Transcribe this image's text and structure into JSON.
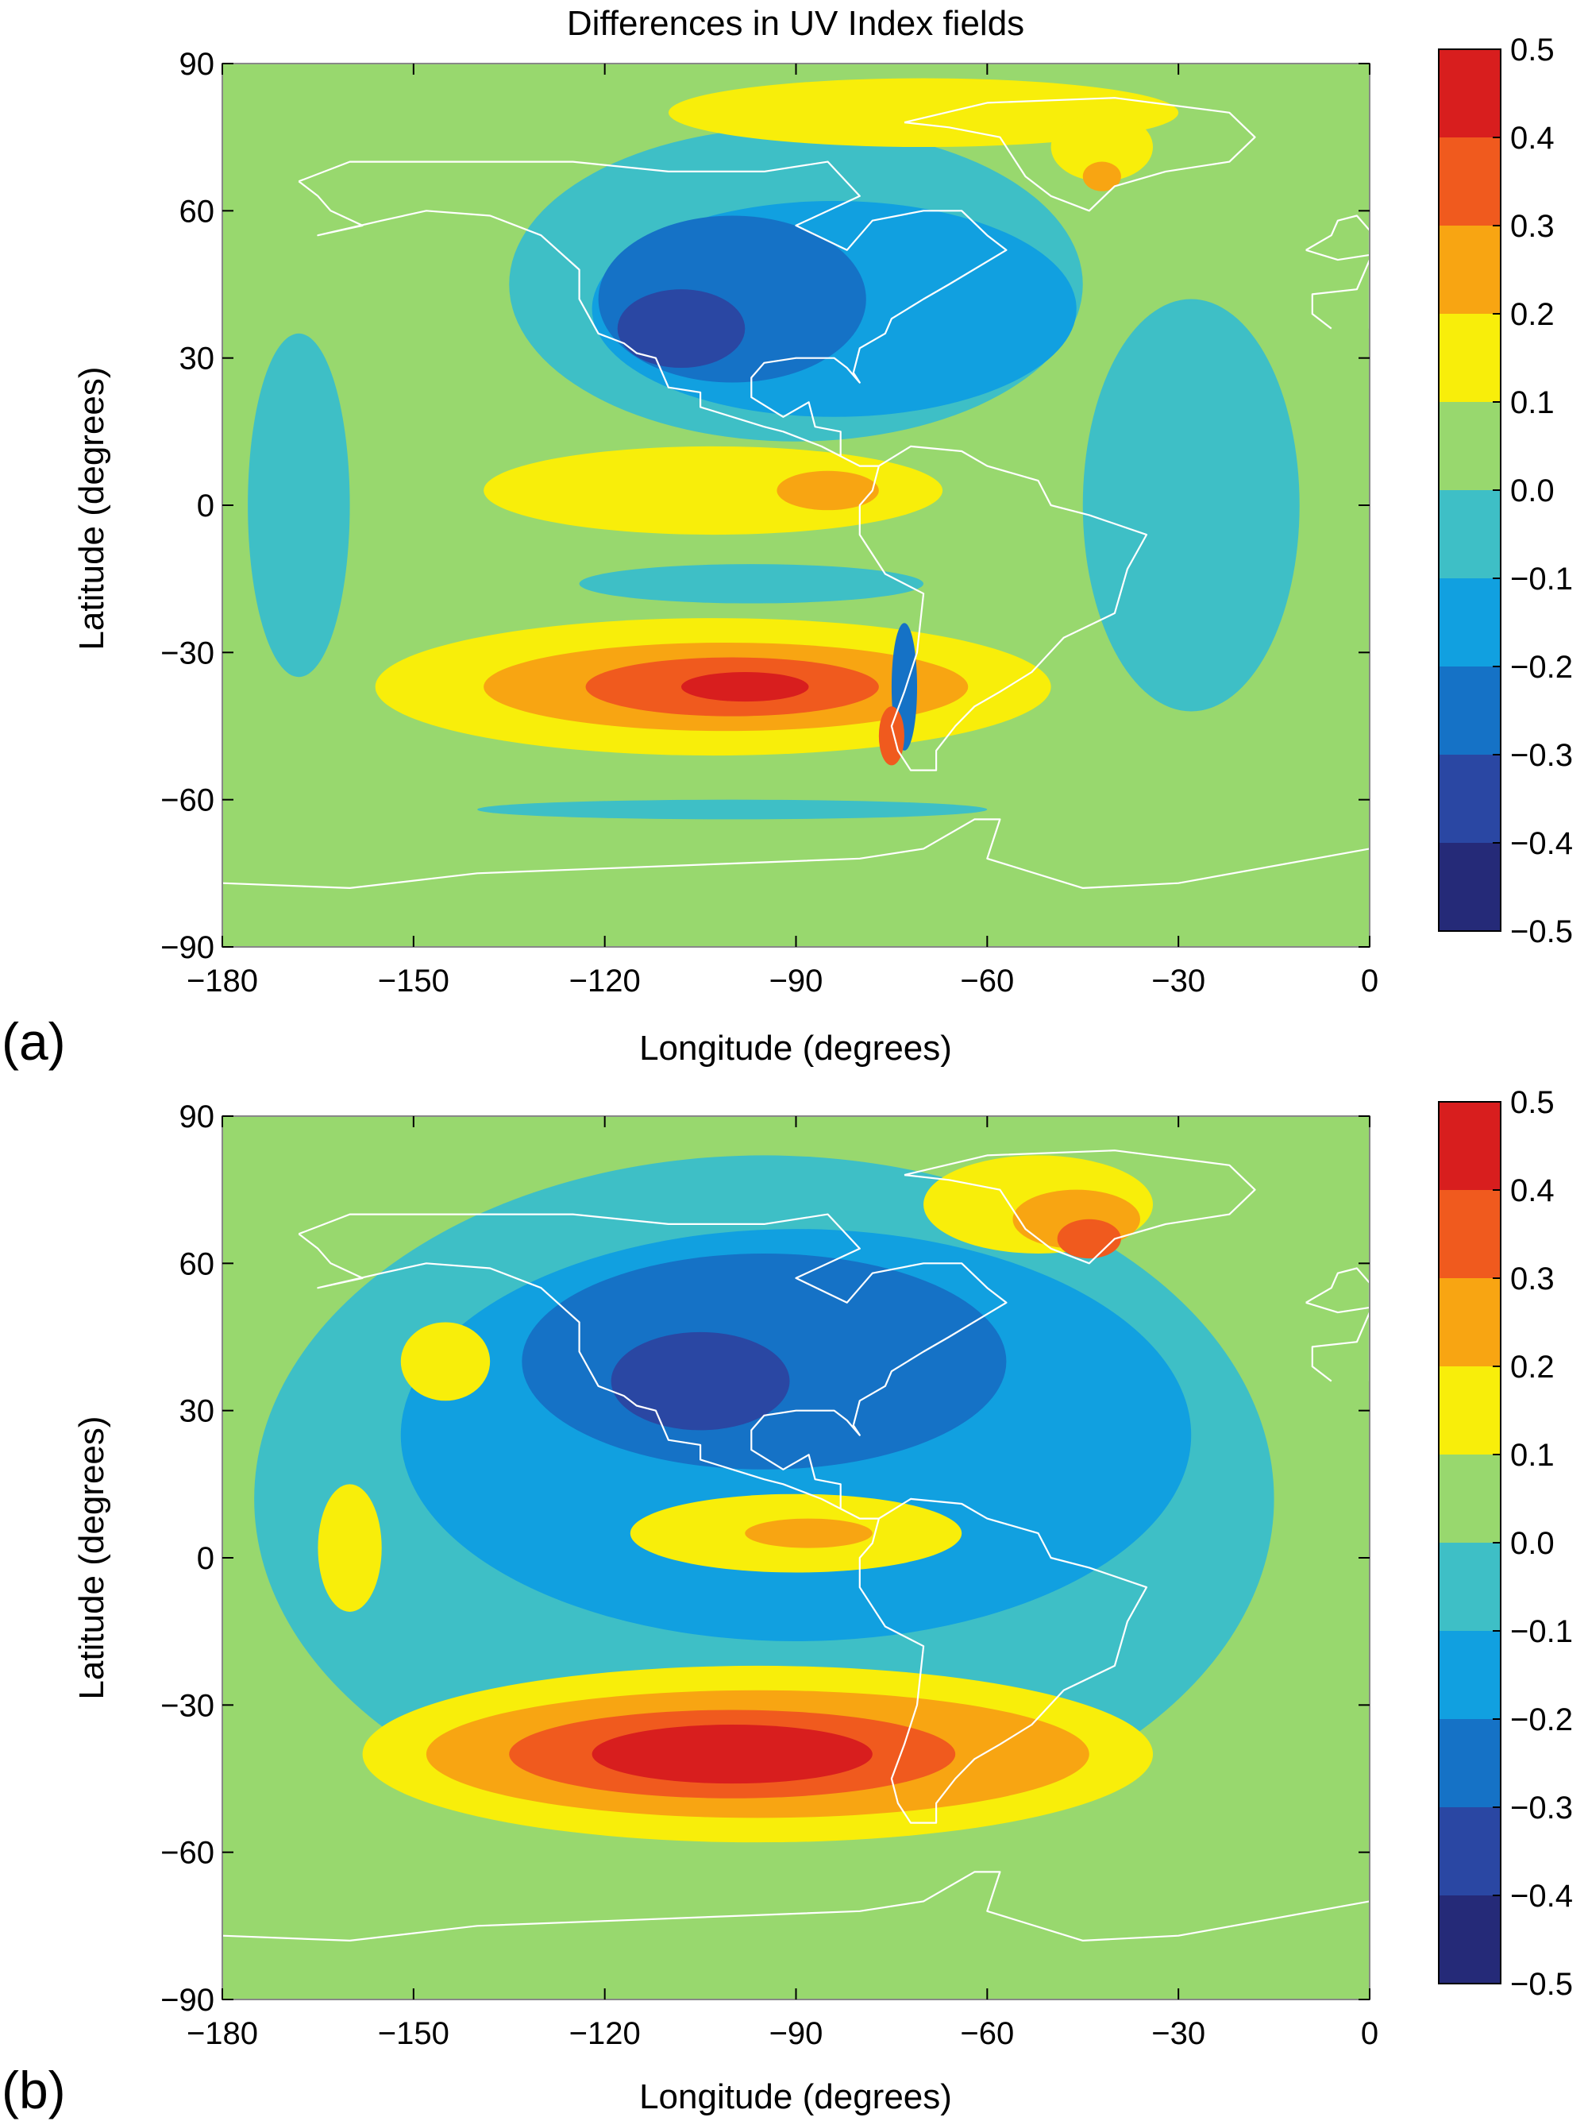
{
  "title": "Differences in UV Index fields",
  "colorbar": {
    "levels": [
      "0.5",
      "0.4",
      "0.3",
      "0.2",
      "0.1",
      "0.0",
      "−0.1",
      "−0.2",
      "−0.3",
      "−0.4",
      "−0.5"
    ],
    "colors": [
      "#d81e1e",
      "#f05a1e",
      "#f8a512",
      "#f8ee0a",
      "#98d86e",
      "#3ebfc6",
      "#11a0e0",
      "#1572c6",
      "#2a47a3",
      "#252a78"
    ]
  },
  "coast_color": "#ffffff",
  "chart_data": [
    {
      "type": "heatmap",
      "panel": "(a)",
      "title": "Differences in UV Index fields",
      "xlabel": "Longitude (degrees)",
      "ylabel": "Latitude (degrees)",
      "xlim": [
        -180,
        0
      ],
      "ylim": [
        -90,
        90
      ],
      "xticks": [
        "−180",
        "−150",
        "−120",
        "−90",
        "−60",
        "−30",
        "0"
      ],
      "yticks": [
        "90",
        "60",
        "30",
        "0",
        "−30",
        "−60",
        "−90"
      ],
      "colorbar_range": [
        -0.5,
        0.5
      ],
      "background_level": 0.05,
      "features": [
        {
          "kind": "ellipse",
          "lon": -103,
          "lat": -37,
          "rlon": 53,
          "rlat": 14,
          "value": 0.15
        },
        {
          "kind": "ellipse",
          "lon": -101,
          "lat": -37,
          "rlon": 38,
          "rlat": 9,
          "value": 0.25
        },
        {
          "kind": "ellipse",
          "lon": -100,
          "lat": -37,
          "rlon": 23,
          "rlat": 6,
          "value": 0.35
        },
        {
          "kind": "ellipse",
          "lon": -98,
          "lat": -37,
          "rlon": 10,
          "rlat": 3,
          "value": 0.45
        },
        {
          "kind": "ellipse",
          "lon": -97,
          "lat": -16,
          "rlon": 27,
          "rlat": 4,
          "value": -0.05
        },
        {
          "kind": "ellipse",
          "lon": -103,
          "lat": 3,
          "rlon": 36,
          "rlat": 9,
          "value": 0.15
        },
        {
          "kind": "ellipse",
          "lon": -85,
          "lat": 3,
          "rlon": 8,
          "rlat": 4,
          "value": 0.25
        },
        {
          "kind": "ellipse",
          "lon": -168,
          "lat": 0,
          "rlon": 8,
          "rlat": 35,
          "value": -0.05
        },
        {
          "kind": "ellipse",
          "lon": -28,
          "lat": 0,
          "rlon": 17,
          "rlat": 42,
          "value": -0.05
        },
        {
          "kind": "ellipse",
          "lon": -90,
          "lat": 45,
          "rlon": 45,
          "rlat": 32,
          "value": -0.05
        },
        {
          "kind": "ellipse",
          "lon": -84,
          "lat": 40,
          "rlon": 38,
          "rlat": 22,
          "value": -0.15
        },
        {
          "kind": "ellipse",
          "lon": -100,
          "lat": 42,
          "rlon": 21,
          "rlat": 17,
          "value": -0.25
        },
        {
          "kind": "ellipse",
          "lon": -108,
          "lat": 36,
          "rlon": 10,
          "rlat": 8,
          "value": -0.35
        },
        {
          "kind": "ellipse",
          "lon": -70,
          "lat": 80,
          "rlon": 40,
          "rlat": 7,
          "value": 0.15
        },
        {
          "kind": "ellipse",
          "lon": -42,
          "lat": 73,
          "rlon": 8,
          "rlat": 7,
          "value": 0.15
        },
        {
          "kind": "ellipse",
          "lon": -42,
          "lat": 67,
          "rlon": 3,
          "rlat": 3,
          "value": 0.25
        },
        {
          "kind": "ellipse",
          "lon": -100,
          "lat": -62,
          "rlon": 40,
          "rlat": 2,
          "value": -0.05
        },
        {
          "kind": "ellipse",
          "lon": -73,
          "lat": -37,
          "rlon": 2,
          "rlat": 13,
          "value": -0.25
        },
        {
          "kind": "ellipse",
          "lon": -75,
          "lat": -47,
          "rlon": 2,
          "rlat": 6,
          "value": 0.35
        }
      ]
    },
    {
      "type": "heatmap",
      "panel": "(b)",
      "title": "",
      "xlabel": "Longitude (degrees)",
      "ylabel": "Latitude (degrees)",
      "xlim": [
        -180,
        0
      ],
      "ylim": [
        -90,
        90
      ],
      "xticks": [
        "−180",
        "−150",
        "−120",
        "−90",
        "−60",
        "−30",
        "0"
      ],
      "yticks": [
        "90",
        "60",
        "30",
        "0",
        "−30",
        "−60",
        "−90"
      ],
      "colorbar_range": [
        -0.5,
        0.5
      ],
      "background_level": 0.05,
      "features": [
        {
          "kind": "ellipse",
          "lon": -95,
          "lat": 12,
          "rlon": 80,
          "rlat": 70,
          "value": -0.05
        },
        {
          "kind": "ellipse",
          "lon": -90,
          "lat": 25,
          "rlon": 62,
          "rlat": 42,
          "value": -0.15
        },
        {
          "kind": "ellipse",
          "lon": -95,
          "lat": 40,
          "rlon": 38,
          "rlat": 22,
          "value": -0.25
        },
        {
          "kind": "ellipse",
          "lon": -105,
          "lat": 36,
          "rlon": 14,
          "rlat": 10,
          "value": -0.35
        },
        {
          "kind": "ellipse",
          "lon": -90,
          "lat": 5,
          "rlon": 26,
          "rlat": 8,
          "value": 0.15
        },
        {
          "kind": "ellipse",
          "lon": -88,
          "lat": 5,
          "rlon": 10,
          "rlat": 3,
          "value": 0.25
        },
        {
          "kind": "ellipse",
          "lon": -96,
          "lat": -40,
          "rlon": 62,
          "rlat": 18,
          "value": 0.15
        },
        {
          "kind": "ellipse",
          "lon": -96,
          "lat": -40,
          "rlon": 52,
          "rlat": 13,
          "value": 0.25
        },
        {
          "kind": "ellipse",
          "lon": -100,
          "lat": -40,
          "rlon": 35,
          "rlat": 9,
          "value": 0.35
        },
        {
          "kind": "ellipse",
          "lon": -100,
          "lat": -40,
          "rlon": 22,
          "rlat": 6,
          "value": 0.45
        },
        {
          "kind": "ellipse",
          "lon": -160,
          "lat": 2,
          "rlon": 5,
          "rlat": 13,
          "value": 0.15
        },
        {
          "kind": "ellipse",
          "lon": -145,
          "lat": 40,
          "rlon": 7,
          "rlat": 8,
          "value": 0.15
        },
        {
          "kind": "ellipse",
          "lon": -52,
          "lat": 72,
          "rlon": 18,
          "rlat": 10,
          "value": 0.15
        },
        {
          "kind": "ellipse",
          "lon": -46,
          "lat": 69,
          "rlon": 10,
          "rlat": 6,
          "value": 0.25
        },
        {
          "kind": "ellipse",
          "lon": -44,
          "lat": 65,
          "rlon": 5,
          "rlat": 4,
          "value": 0.35
        }
      ]
    }
  ]
}
